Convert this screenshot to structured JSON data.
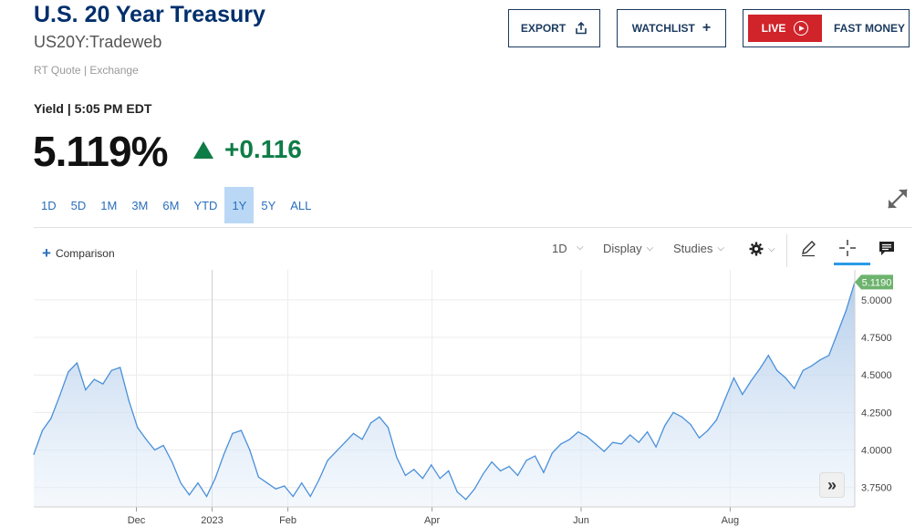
{
  "header": {
    "title": "U.S. 20 Year Treasury",
    "symbol": "US20Y:Tradeweb",
    "quote_source": "RT Quote | Exchange",
    "export_label": "EXPORT",
    "watchlist_label": "WATCHLIST",
    "live_label": "LIVE",
    "fast_money_label": "FAST MONEY"
  },
  "quote": {
    "yield_label": "Yield | 5:05 PM EDT",
    "price": "5.119%",
    "change": "+0.116"
  },
  "ranges": [
    "1D",
    "5D",
    "1M",
    "3M",
    "6M",
    "YTD",
    "1Y",
    "5Y",
    "ALL"
  ],
  "active_range": "1Y",
  "toolbar": {
    "comparison_label": "Comparison",
    "interval_label": "1D",
    "display_label": "Display",
    "studies_label": "Studies",
    "icons": [
      "settings-gear-icon",
      "pencil-draw-icon",
      "crosshair-icon",
      "comment-icon",
      "expand-arrows-icon",
      "double-chevron-right-icon"
    ]
  },
  "colors": {
    "brand": "#002f6c",
    "positive": "#0e7c46",
    "live": "#d1232a",
    "active_range": "#bad8f5",
    "line": "#4a90d9",
    "last_price_badge": "#6db36d"
  },
  "chart_data": {
    "type": "area",
    "series": [
      {
        "values": [
          3.97,
          4.13,
          4.21,
          4.36,
          4.52,
          4.58,
          4.4,
          4.47,
          4.44,
          4.53,
          4.55,
          4.33,
          4.15,
          4.07,
          4.0,
          4.03,
          3.92,
          3.78,
          3.7,
          3.78,
          3.69,
          3.81,
          3.97,
          4.11,
          4.13,
          4.0,
          3.82,
          3.78,
          3.74,
          3.76,
          3.69,
          3.78,
          3.69,
          3.8,
          3.93,
          3.99,
          4.05,
          4.11,
          4.07,
          4.18,
          4.22,
          4.15,
          3.95,
          3.83,
          3.87,
          3.81,
          3.9,
          3.81,
          3.86,
          3.72,
          3.67,
          3.74,
          3.84,
          3.92,
          3.86,
          3.89,
          3.83,
          3.93,
          3.96,
          3.85,
          3.98,
          4.04,
          4.07,
          4.12,
          4.09,
          4.04,
          3.99,
          4.05,
          4.04,
          4.1,
          4.05,
          4.12,
          4.02,
          4.16,
          4.25,
          4.22,
          4.17,
          4.08,
          4.13,
          4.2,
          4.34,
          4.48,
          4.37,
          4.46,
          4.54,
          4.63,
          4.53,
          4.48,
          4.41,
          4.53,
          4.56,
          4.6,
          4.63,
          4.78,
          4.93,
          5.119
        ],
        "x_start": "2022-10-20",
        "x_end": "2023-09-21"
      }
    ],
    "x_tick_labels": [
      "Dec",
      "2023",
      "Feb",
      "Apr",
      "Jun",
      "Aug"
    ],
    "x_tick_dates": [
      "2022-12-01",
      "2023-01-01",
      "2023-02-01",
      "2023-04-01",
      "2023-06-01",
      "2023-08-01"
    ],
    "y_tick_labels": [
      "3.7500",
      "4.0000",
      "4.2500",
      "4.5000",
      "4.7500",
      "5.0000"
    ],
    "y_ticks": [
      3.75,
      4.0,
      4.25,
      4.5,
      4.75,
      5.0
    ],
    "ylim": [
      3.62,
      5.2
    ],
    "last_value_label": "5.1190",
    "grid": true,
    "y_axis_side": "right"
  }
}
